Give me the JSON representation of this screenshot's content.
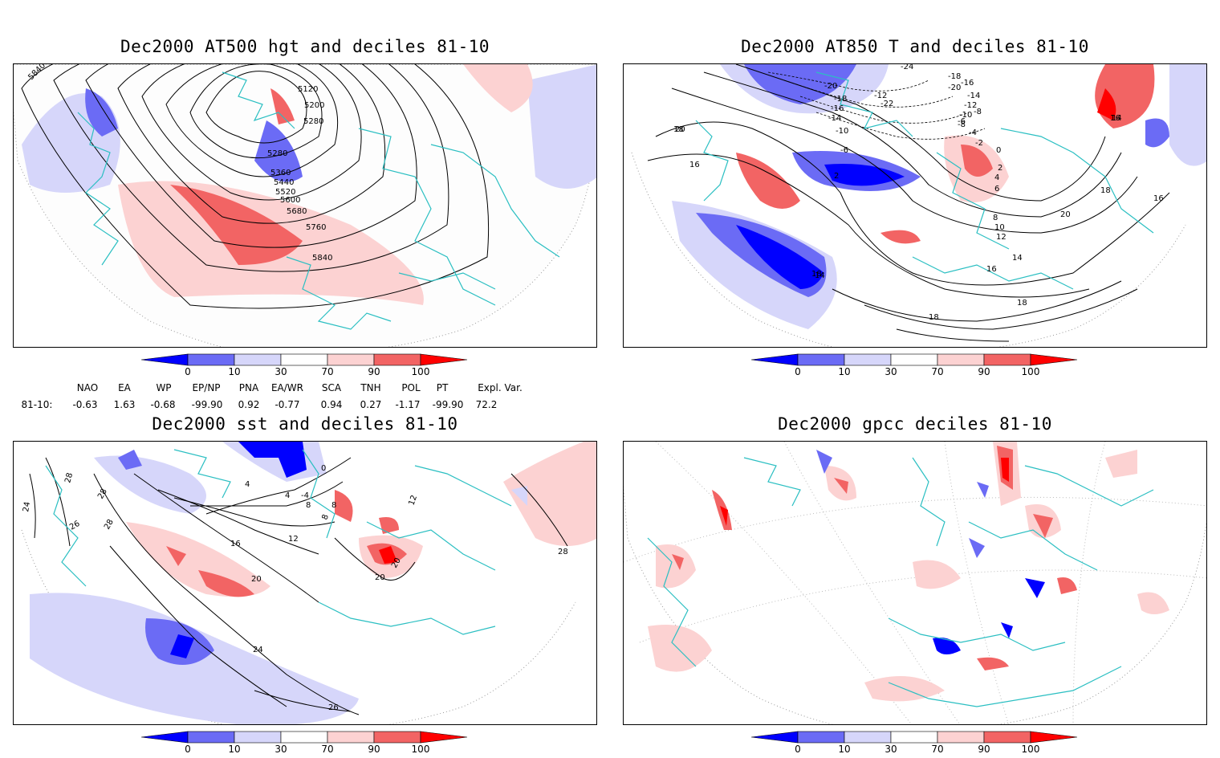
{
  "panels": {
    "p1": {
      "title": "Dec2000 AT500 hgt and deciles 81-10",
      "contours": [
        "5840",
        "5120",
        "5200",
        "5280",
        "5280",
        "5360",
        "5440",
        "5520",
        "5600",
        "5680",
        "5760",
        "5840"
      ]
    },
    "p2": {
      "title": "Dec2000 AT850 T and deciles 81-10",
      "contours": [
        "-24",
        "-20",
        "-18",
        "-16",
        "-14",
        "-12",
        "-10",
        "-8",
        "-6",
        "-4",
        "-2",
        "0",
        "2",
        "4",
        "6",
        "8",
        "10",
        "12",
        "14",
        "16",
        "18",
        "20",
        "16",
        "18",
        "14",
        "2",
        "-22",
        "-20",
        "-18",
        "-16",
        "-14",
        "-12",
        "-10",
        "-8",
        "-6",
        "16",
        "18",
        "20",
        "18",
        "14",
        "16",
        "18"
      ]
    },
    "p3": {
      "title": "Dec2000 sst and deciles 81-10",
      "contours": [
        "28",
        "24",
        "26",
        "28",
        "0",
        "4",
        "4",
        "8",
        "12",
        "16",
        "20",
        "24",
        "26",
        "28",
        "-4",
        "8",
        "8",
        "12",
        "20",
        "20",
        "28"
      ]
    },
    "p4": {
      "title": "Dec2000 gpcc deciles 81-10"
    }
  },
  "colorbar": {
    "labels": [
      "0",
      "10",
      "30",
      "70",
      "90",
      "100"
    ],
    "colors": [
      "#0000ff",
      "#6b6bf5",
      "#d6d6fa",
      "#ffffff",
      "#fcd2d2",
      "#f26464",
      "#ff0000"
    ]
  },
  "indices": {
    "headers": [
      "NAO",
      "EA",
      "WP",
      "EP/NP",
      "PNA",
      "EA/WR",
      "SCA",
      "TNH",
      "POL",
      "PT",
      "Expl. Var."
    ],
    "row_label": "81-10:",
    "values": [
      "-0.63",
      "1.63",
      "-0.68",
      "-99.90",
      "0.92",
      "-0.77",
      "0.94",
      "0.27",
      "-1.17",
      "-99.90",
      "72.2"
    ]
  },
  "colors": {
    "coastline": "#2bbfc2",
    "grid": "#888888"
  }
}
